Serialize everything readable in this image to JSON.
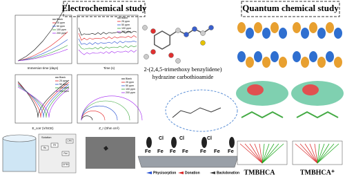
{
  "sections": [
    {
      "title": "Electrochemical study"
    },
    {
      "title": "Quantum chemical study"
    }
  ],
  "plots": {
    "legend": [
      "Blank",
      "25 ppm",
      "50 ppm",
      "100 ppm",
      "200 ppm"
    ],
    "axis_labels": [
      "Immersion time (days)",
      "Time (s)",
      "E_corr (V/SCE)",
      "Z_r (Ohm cm²)"
    ]
  },
  "circuit": {
    "elements": [
      "Rs",
      "Rf",
      "Rct",
      "CPE",
      "CPEf"
    ],
    "solution": "Solution"
  },
  "molecule": {
    "name": [
      "2-(2,4,5-trimethoxy benzylidene)",
      "hydrazine carbothioamide"
    ]
  },
  "adsorption": {
    "metal": "Fe",
    "halide": "Cl",
    "legend": [
      "Physisorption",
      "Donation",
      "Backdonation"
    ]
  },
  "quantum": {
    "labels": [
      "TMBHCA",
      "TMBHCA⁺"
    ]
  }
}
